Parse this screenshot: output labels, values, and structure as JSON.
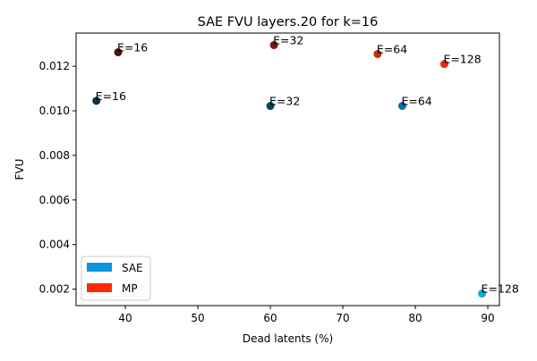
{
  "chart_data": {
    "type": "scatter",
    "title": "SAE FVU layers.20 for k=16",
    "xlabel": "Dead latents (%)",
    "ylabel": "FVU",
    "xlim": [
      33.2,
      91.6
    ],
    "ylim": [
      0.00126,
      0.01349
    ],
    "xticks": [
      40,
      50,
      60,
      70,
      80,
      90
    ],
    "xtick_labels": [
      "40",
      "50",
      "60",
      "70",
      "80",
      "90"
    ],
    "yticks": [
      0.002,
      0.004,
      0.006,
      0.008,
      0.01,
      0.012
    ],
    "ytick_labels": [
      "0.002",
      "0.004",
      "0.006",
      "0.008",
      "0.010",
      "0.012"
    ],
    "grid": false,
    "legend": {
      "placement": "lower-left",
      "entries": [
        {
          "name": "SAE",
          "color": "#0a95dc"
        },
        {
          "name": "MP",
          "color": "#ff2a00"
        }
      ]
    },
    "series": [
      {
        "name": "SAE",
        "points": [
          {
            "x": 36.0,
            "y": 0.01045,
            "label": "E=16",
            "color": "#0b3346"
          },
          {
            "x": 60.0,
            "y": 0.01022,
            "label": "E=32",
            "color": "#084566"
          },
          {
            "x": 78.2,
            "y": 0.01022,
            "label": "E=64",
            "color": "#0b6fa3"
          },
          {
            "x": 89.2,
            "y": 0.0018,
            "label": "E=128",
            "color": "#12a4e8"
          }
        ]
      },
      {
        "name": "MP",
        "points": [
          {
            "x": 39.0,
            "y": 0.01263,
            "label": "E=16",
            "color": "#4a1208"
          },
          {
            "x": 60.5,
            "y": 0.01295,
            "label": "E=32",
            "color": "#7a1a0a"
          },
          {
            "x": 74.8,
            "y": 0.01255,
            "label": "E=64",
            "color": "#c62a0e"
          },
          {
            "x": 84.0,
            "y": 0.0121,
            "label": "E=128",
            "color": "#f0280a"
          }
        ]
      }
    ]
  }
}
